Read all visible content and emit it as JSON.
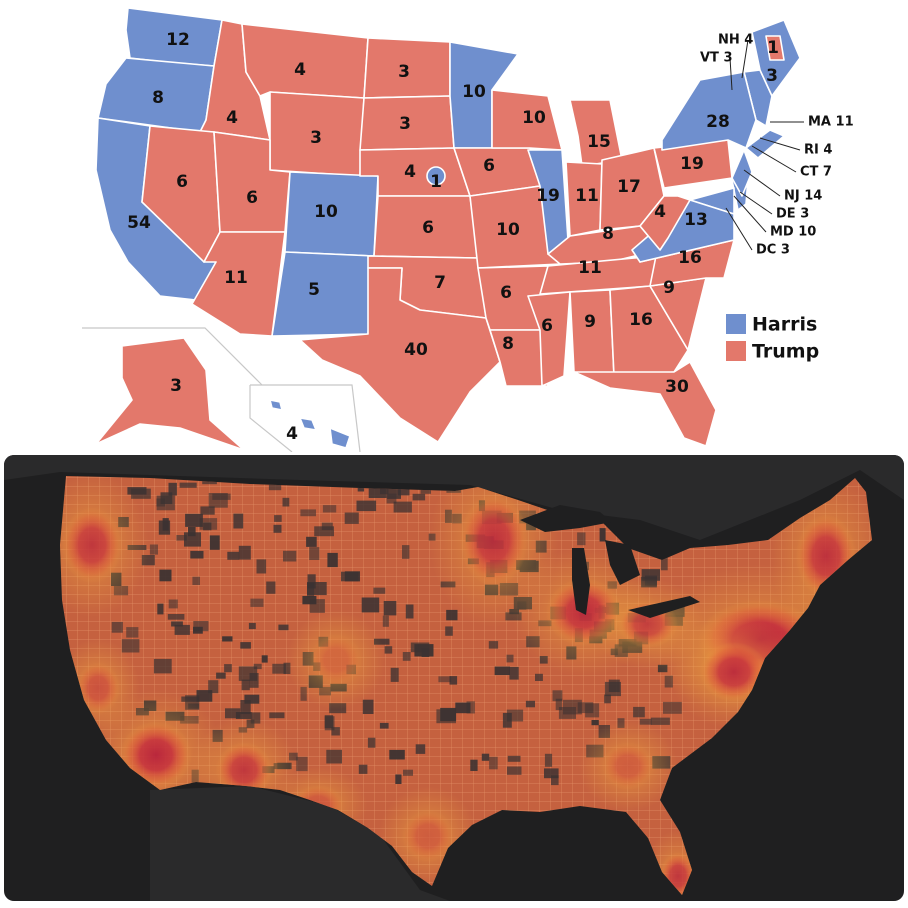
{
  "colors": {
    "harris": "#6f8fce",
    "trump": "#e3786b",
    "map_bg": "#1d1d1e",
    "heat_core": "#b8213a",
    "county_fill": "#c6623f"
  },
  "legend": [
    {
      "label": "Harris",
      "color": "#6f8fce"
    },
    {
      "label": "Trump",
      "color": "#e3786b"
    }
  ],
  "states": [
    {
      "name": "WA",
      "ev": "12",
      "winner": "harris"
    },
    {
      "name": "OR",
      "ev": "8",
      "winner": "harris"
    },
    {
      "name": "CA",
      "ev": "54",
      "winner": "harris"
    },
    {
      "name": "ID",
      "ev": "4",
      "winner": "trump"
    },
    {
      "name": "NV",
      "ev": "6",
      "winner": "trump"
    },
    {
      "name": "MT",
      "ev": "4",
      "winner": "trump"
    },
    {
      "name": "WY",
      "ev": "3",
      "winner": "trump"
    },
    {
      "name": "UT",
      "ev": "6",
      "winner": "trump"
    },
    {
      "name": "AZ",
      "ev": "11",
      "winner": "trump"
    },
    {
      "name": "CO",
      "ev": "10",
      "winner": "harris"
    },
    {
      "name": "NM",
      "ev": "5",
      "winner": "harris"
    },
    {
      "name": "ND",
      "ev": "3",
      "winner": "trump"
    },
    {
      "name": "SD",
      "ev": "3",
      "winner": "trump"
    },
    {
      "name": "NE",
      "ev": "4",
      "winner": "trump"
    },
    {
      "name": "NE-2",
      "ev": "1",
      "winner": "harris"
    },
    {
      "name": "KS",
      "ev": "6",
      "winner": "trump"
    },
    {
      "name": "OK",
      "ev": "7",
      "winner": "trump"
    },
    {
      "name": "TX",
      "ev": "40",
      "winner": "trump"
    },
    {
      "name": "MN",
      "ev": "10",
      "winner": "harris"
    },
    {
      "name": "IA",
      "ev": "6",
      "winner": "trump"
    },
    {
      "name": "MO",
      "ev": "10",
      "winner": "trump"
    },
    {
      "name": "AR",
      "ev": "6",
      "winner": "trump"
    },
    {
      "name": "LA",
      "ev": "8",
      "winner": "trump"
    },
    {
      "name": "WI",
      "ev": "10",
      "winner": "trump"
    },
    {
      "name": "IL",
      "ev": "19",
      "winner": "harris"
    },
    {
      "name": "MI",
      "ev": "15",
      "winner": "trump"
    },
    {
      "name": "IN",
      "ev": "11",
      "winner": "trump"
    },
    {
      "name": "OH",
      "ev": "17",
      "winner": "trump"
    },
    {
      "name": "KY",
      "ev": "8",
      "winner": "trump"
    },
    {
      "name": "TN",
      "ev": "11",
      "winner": "trump"
    },
    {
      "name": "MS",
      "ev": "6",
      "winner": "trump"
    },
    {
      "name": "AL",
      "ev": "9",
      "winner": "trump"
    },
    {
      "name": "GA",
      "ev": "16",
      "winner": "trump"
    },
    {
      "name": "FL",
      "ev": "30",
      "winner": "trump"
    },
    {
      "name": "SC",
      "ev": "9",
      "winner": "trump"
    },
    {
      "name": "NC",
      "ev": "16",
      "winner": "trump"
    },
    {
      "name": "VA",
      "ev": "13",
      "winner": "harris"
    },
    {
      "name": "WV",
      "ev": "4",
      "winner": "trump"
    },
    {
      "name": "PA",
      "ev": "19",
      "winner": "trump"
    },
    {
      "name": "NY",
      "ev": "28",
      "winner": "harris"
    },
    {
      "name": "ME",
      "ev": "3",
      "winner": "harris"
    },
    {
      "name": "ME-2",
      "ev": "1",
      "winner": "trump"
    },
    {
      "name": "AK",
      "ev": "3",
      "winner": "trump"
    },
    {
      "name": "HI",
      "ev": "4",
      "winner": "harris"
    }
  ],
  "callouts": [
    {
      "name": "NH",
      "text": "NH 4"
    },
    {
      "name": "VT",
      "text": "VT 3"
    },
    {
      "name": "MA",
      "text": "MA 11"
    },
    {
      "name": "RI",
      "text": "RI 4"
    },
    {
      "name": "CT",
      "text": "CT 7"
    },
    {
      "name": "NJ",
      "text": "NJ 14"
    },
    {
      "name": "DE",
      "text": "DE 3"
    },
    {
      "name": "MD",
      "text": "MD 10"
    },
    {
      "name": "DC",
      "text": "DC 3"
    }
  ],
  "heat_spots": [
    {
      "name": "seattle-portland",
      "intensity": 0.8
    },
    {
      "name": "bay-area",
      "intensity": 0.55
    },
    {
      "name": "los-angeles",
      "intensity": 0.95
    },
    {
      "name": "phoenix",
      "intensity": 0.8
    },
    {
      "name": "tucson-el-paso",
      "intensity": 0.5
    },
    {
      "name": "minneapolis",
      "intensity": 0.85
    },
    {
      "name": "chicago",
      "intensity": 0.9
    },
    {
      "name": "detroit-cleveland",
      "intensity": 0.75
    },
    {
      "name": "northeast-corridor",
      "intensity": 1.0
    },
    {
      "name": "boston",
      "intensity": 0.85
    },
    {
      "name": "dc-baltimore",
      "intensity": 0.9
    },
    {
      "name": "atlanta",
      "intensity": 0.45
    },
    {
      "name": "houston",
      "intensity": 0.45
    },
    {
      "name": "miami",
      "intensity": 0.8
    },
    {
      "name": "denver",
      "intensity": 0.35
    }
  ]
}
